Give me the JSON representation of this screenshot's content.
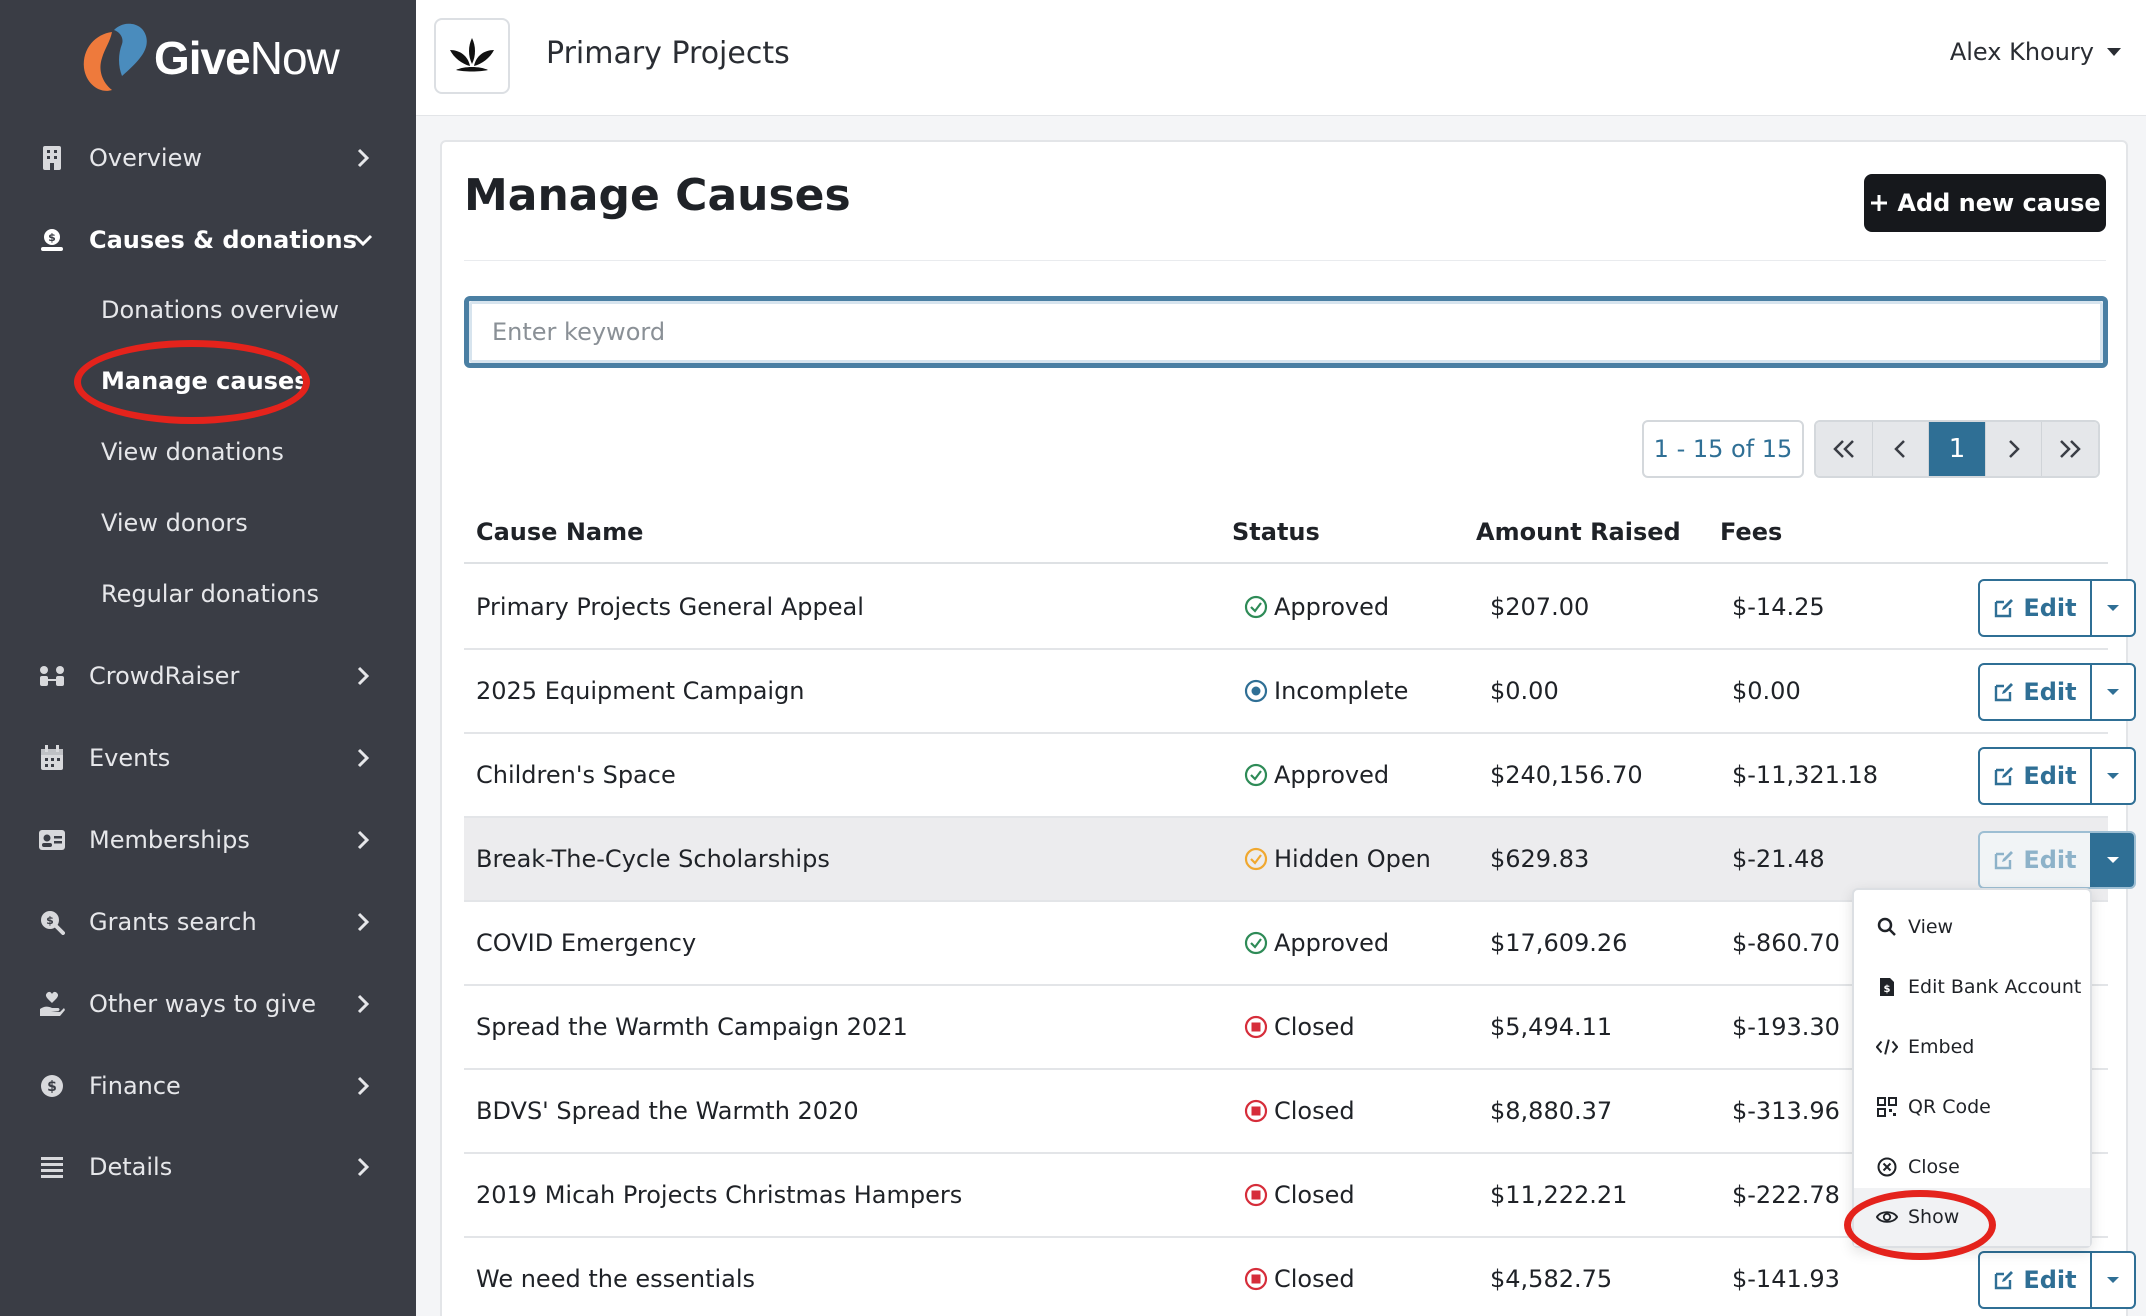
{
  "brand": {
    "name_bold": "Give",
    "name_light": "Now",
    "accent_orange": "#ee7a3c",
    "accent_blue": "#4a8cbd"
  },
  "sidebar": {
    "items": [
      {
        "label": "Overview",
        "icon": "building-icon"
      },
      {
        "label": "Causes & donations",
        "icon": "donation-icon",
        "expanded": true
      },
      {
        "label": "CrowdRaiser",
        "icon": "people-icon"
      },
      {
        "label": "Events",
        "icon": "calendar-icon"
      },
      {
        "label": "Memberships",
        "icon": "id-card-icon"
      },
      {
        "label": "Grants search",
        "icon": "search-dollar-icon"
      },
      {
        "label": "Other ways to give",
        "icon": "hand-heart-icon"
      },
      {
        "label": "Finance",
        "icon": "dollar-circle-icon"
      },
      {
        "label": "Details",
        "icon": "list-icon"
      }
    ],
    "sub_items": [
      {
        "label": "Donations overview"
      },
      {
        "label": "Manage causes",
        "active": true
      },
      {
        "label": "View donations"
      },
      {
        "label": "View donors"
      },
      {
        "label": "Regular donations"
      }
    ]
  },
  "topbar": {
    "org_name": "Primary Projects",
    "user_name": "Alex Khoury"
  },
  "main": {
    "title": "Manage Causes",
    "add_button": "Add new cause",
    "search": {
      "placeholder": "Enter keyword",
      "value": ""
    },
    "pagination": {
      "range": "1 - 15 of 15",
      "current_page": "1"
    },
    "columns": [
      "Cause Name",
      "Status",
      "Amount Raised",
      "Fees"
    ],
    "edit_label": "Edit",
    "rows": [
      {
        "name": "Primary Projects General Appeal",
        "status": "Approved",
        "status_type": "approved",
        "amount": "$207.00",
        "fees": "$-14.25"
      },
      {
        "name": "2025 Equipment Campaign",
        "status": "Incomplete",
        "status_type": "incomplete",
        "amount": "$0.00",
        "fees": "$0.00"
      },
      {
        "name": "Children's Space",
        "status": "Approved",
        "status_type": "approved",
        "amount": "$240,156.70",
        "fees": "$-11,321.18"
      },
      {
        "name": "Break-The-Cycle Scholarships",
        "status": "Hidden Open",
        "status_type": "hidden",
        "amount": "$629.83",
        "fees": "$-21.48"
      },
      {
        "name": "COVID Emergency",
        "status": "Approved",
        "status_type": "approved",
        "amount": "$17,609.26",
        "fees": "$-860.70"
      },
      {
        "name": "Spread the Warmth Campaign 2021",
        "status": "Closed",
        "status_type": "closed",
        "amount": "$5,494.11",
        "fees": "$-193.30"
      },
      {
        "name": "BDVS' Spread the Warmth 2020",
        "status": "Closed",
        "status_type": "closed",
        "amount": "$8,880.37",
        "fees": "$-313.96"
      },
      {
        "name": "2019 Micah Projects Christmas Hampers",
        "status": "Closed",
        "status_type": "closed",
        "amount": "$11,222.21",
        "fees": "$-222.78"
      },
      {
        "name": "We need the essentials",
        "status": "Closed",
        "status_type": "closed",
        "amount": "$4,582.75",
        "fees": "$-141.93"
      }
    ],
    "status_colors": {
      "approved": "#2e8b57",
      "incomplete": "#2f6f95",
      "hidden": "#f0a830",
      "closed": "#d62d3a"
    },
    "dropdown": [
      {
        "label": "View",
        "icon": "magnifier-icon"
      },
      {
        "label": "Edit Bank Account",
        "icon": "file-dollar-icon"
      },
      {
        "label": "Embed",
        "icon": "code-icon"
      },
      {
        "label": "QR Code",
        "icon": "qr-code-icon"
      },
      {
        "label": "Close",
        "icon": "close-circle-icon"
      },
      {
        "label": "Show",
        "icon": "eye-icon"
      }
    ]
  }
}
